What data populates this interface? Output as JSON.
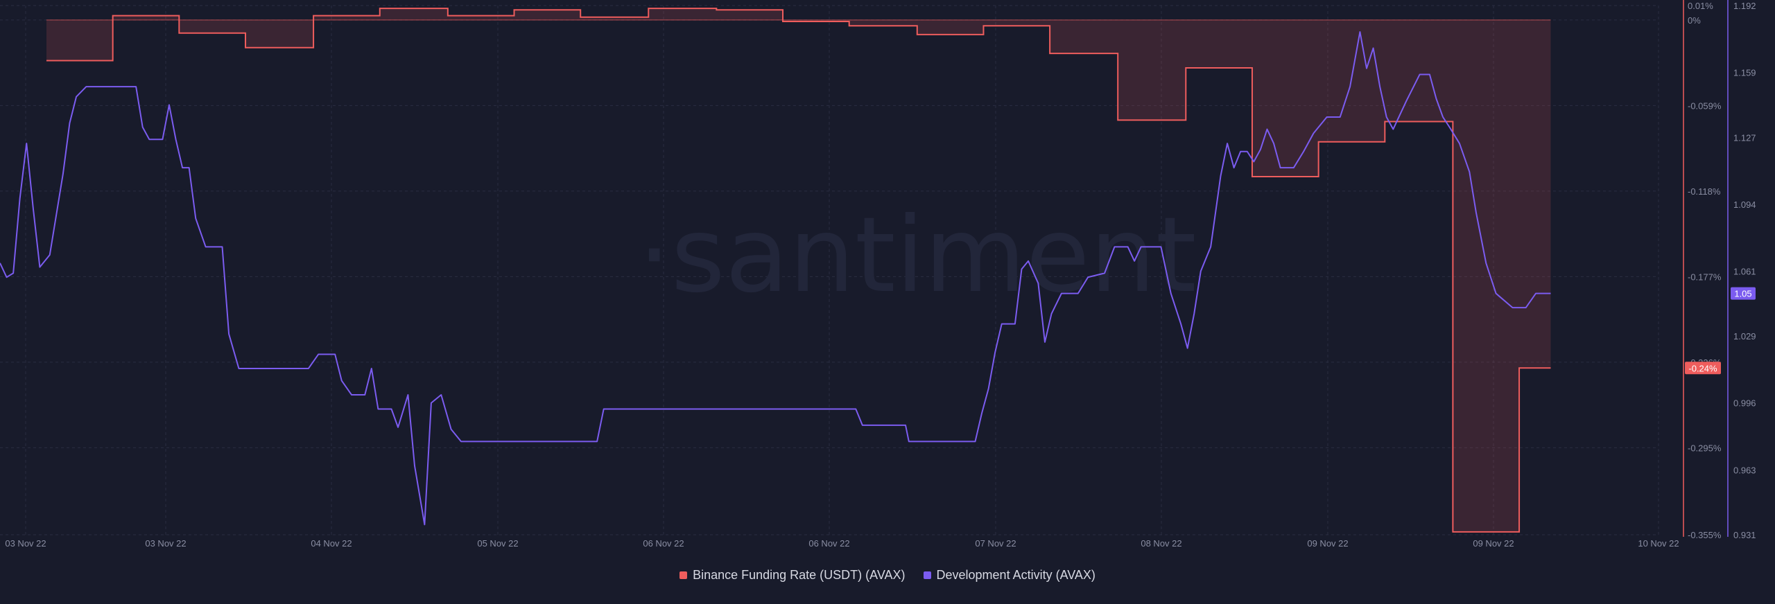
{
  "chart_data": {
    "type": "line",
    "watermark": "·santiment",
    "x_tick_labels": [
      "03 Nov 22",
      "03 Nov 22",
      "04 Nov 22",
      "05 Nov 22",
      "06 Nov 22",
      "06 Nov 22",
      "07 Nov 22",
      "08 Nov 22",
      "09 Nov 22",
      "09 Nov 22",
      "10 Nov 22"
    ],
    "y_left": {
      "ticks": [
        "0.01%",
        "0%",
        "-0.059%",
        "-0.118%",
        "-0.177%",
        "-0.236%",
        "-0.295%",
        "-0.355%"
      ],
      "min": -0.355,
      "max": 0.01,
      "current_label": "-0.24%"
    },
    "y_right": {
      "ticks": [
        "1.192",
        "1.159",
        "1.127",
        "1.094",
        "1.061",
        "1.029",
        "0.996",
        "0.963",
        "0.931"
      ],
      "min": 0.931,
      "max": 1.192,
      "current_label": "1.05"
    },
    "series": [
      {
        "name": "Binance Funding Rate (USDT) (AVAX)",
        "color": "#ef5d5d",
        "axis": "left",
        "style": "step-area",
        "points": [
          [
            0.028,
            -0.028
          ],
          [
            0.068,
            0.003
          ],
          [
            0.108,
            -0.009
          ],
          [
            0.148,
            -0.019
          ],
          [
            0.189,
            0.003
          ],
          [
            0.229,
            0.008
          ],
          [
            0.27,
            0.003
          ],
          [
            0.31,
            0.007
          ],
          [
            0.35,
            0.002
          ],
          [
            0.391,
            0.008
          ],
          [
            0.432,
            0.007
          ],
          [
            0.472,
            -0.001
          ],
          [
            0.512,
            -0.004
          ],
          [
            0.553,
            -0.01
          ],
          [
            0.593,
            -0.004
          ],
          [
            0.633,
            -0.023
          ],
          [
            0.674,
            -0.069
          ],
          [
            0.715,
            -0.033
          ],
          [
            0.755,
            -0.108
          ],
          [
            0.795,
            -0.084
          ],
          [
            0.835,
            -0.07
          ],
          [
            0.876,
            -0.353
          ],
          [
            0.916,
            -0.24
          ],
          [
            0.935,
            -0.24
          ]
        ]
      },
      {
        "name": "Development Activity (AVAX)",
        "color": "#7b5cf0",
        "axis": "right",
        "style": "line",
        "points": [
          [
            0.0,
            1.065
          ],
          [
            0.004,
            1.058
          ],
          [
            0.008,
            1.06
          ],
          [
            0.012,
            1.097
          ],
          [
            0.016,
            1.124
          ],
          [
            0.02,
            1.092
          ],
          [
            0.024,
            1.063
          ],
          [
            0.03,
            1.069
          ],
          [
            0.034,
            1.089
          ],
          [
            0.038,
            1.109
          ],
          [
            0.042,
            1.134
          ],
          [
            0.046,
            1.147
          ],
          [
            0.052,
            1.152
          ],
          [
            0.06,
            1.152
          ],
          [
            0.07,
            1.152
          ],
          [
            0.082,
            1.152
          ],
          [
            0.086,
            1.132
          ],
          [
            0.09,
            1.126
          ],
          [
            0.098,
            1.126
          ],
          [
            0.102,
            1.143
          ],
          [
            0.106,
            1.126
          ],
          [
            0.11,
            1.112
          ],
          [
            0.114,
            1.112
          ],
          [
            0.118,
            1.087
          ],
          [
            0.124,
            1.073
          ],
          [
            0.134,
            1.073
          ],
          [
            0.138,
            1.03
          ],
          [
            0.144,
            1.013
          ],
          [
            0.15,
            1.013
          ],
          [
            0.166,
            1.013
          ],
          [
            0.186,
            1.013
          ],
          [
            0.192,
            1.02
          ],
          [
            0.202,
            1.02
          ],
          [
            0.206,
            1.007
          ],
          [
            0.212,
            1.0
          ],
          [
            0.22,
            1.0
          ],
          [
            0.224,
            1.013
          ],
          [
            0.228,
            0.993
          ],
          [
            0.236,
            0.993
          ],
          [
            0.24,
            0.984
          ],
          [
            0.246,
            1.0
          ],
          [
            0.25,
            0.965
          ],
          [
            0.256,
            0.936
          ],
          [
            0.26,
            0.996
          ],
          [
            0.266,
            1.0
          ],
          [
            0.272,
            0.983
          ],
          [
            0.278,
            0.977
          ],
          [
            0.3,
            0.977
          ],
          [
            0.33,
            0.977
          ],
          [
            0.36,
            0.977
          ],
          [
            0.364,
            0.993
          ],
          [
            0.378,
            0.993
          ],
          [
            0.4,
            0.993
          ],
          [
            0.44,
            0.993
          ],
          [
            0.48,
            0.993
          ],
          [
            0.516,
            0.993
          ],
          [
            0.52,
            0.985
          ],
          [
            0.546,
            0.985
          ],
          [
            0.548,
            0.977
          ],
          [
            0.568,
            0.977
          ],
          [
            0.588,
            0.977
          ],
          [
            0.592,
            0.991
          ],
          [
            0.596,
            1.003
          ],
          [
            0.6,
            1.021
          ],
          [
            0.604,
            1.035
          ],
          [
            0.612,
            1.035
          ],
          [
            0.616,
            1.062
          ],
          [
            0.62,
            1.066
          ],
          [
            0.626,
            1.055
          ],
          [
            0.63,
            1.026
          ],
          [
            0.634,
            1.04
          ],
          [
            0.64,
            1.05
          ],
          [
            0.65,
            1.05
          ],
          [
            0.656,
            1.058
          ],
          [
            0.666,
            1.06
          ],
          [
            0.672,
            1.073
          ],
          [
            0.68,
            1.073
          ],
          [
            0.684,
            1.066
          ],
          [
            0.688,
            1.073
          ],
          [
            0.7,
            1.073
          ],
          [
            0.706,
            1.05
          ],
          [
            0.712,
            1.035
          ],
          [
            0.716,
            1.023
          ],
          [
            0.72,
            1.04
          ],
          [
            0.724,
            1.061
          ],
          [
            0.73,
            1.073
          ],
          [
            0.736,
            1.108
          ],
          [
            0.74,
            1.124
          ],
          [
            0.744,
            1.112
          ],
          [
            0.748,
            1.12
          ],
          [
            0.752,
            1.12
          ],
          [
            0.756,
            1.115
          ],
          [
            0.76,
            1.121
          ],
          [
            0.764,
            1.131
          ],
          [
            0.768,
            1.124
          ],
          [
            0.772,
            1.112
          ],
          [
            0.78,
            1.112
          ],
          [
            0.786,
            1.12
          ],
          [
            0.792,
            1.129
          ],
          [
            0.8,
            1.137
          ],
          [
            0.808,
            1.137
          ],
          [
            0.814,
            1.152
          ],
          [
            0.82,
            1.179
          ],
          [
            0.824,
            1.161
          ],
          [
            0.828,
            1.171
          ],
          [
            0.832,
            1.152
          ],
          [
            0.836,
            1.137
          ],
          [
            0.84,
            1.131
          ],
          [
            0.848,
            1.145
          ],
          [
            0.856,
            1.158
          ],
          [
            0.862,
            1.158
          ],
          [
            0.866,
            1.146
          ],
          [
            0.87,
            1.137
          ],
          [
            0.874,
            1.132
          ],
          [
            0.88,
            1.124
          ],
          [
            0.886,
            1.11
          ],
          [
            0.89,
            1.09
          ],
          [
            0.896,
            1.065
          ],
          [
            0.902,
            1.05
          ],
          [
            0.912,
            1.043
          ],
          [
            0.92,
            1.043
          ],
          [
            0.926,
            1.05
          ],
          [
            0.935,
            1.05
          ]
        ]
      }
    ],
    "grid": true,
    "legend_position": "bottom-center"
  },
  "colors": {
    "background": "#181b2b",
    "grid": "#2a2e42",
    "axis_text": "#8a8ea3",
    "funding": "#ef5d5d",
    "dev_activity": "#7b5cf0"
  }
}
